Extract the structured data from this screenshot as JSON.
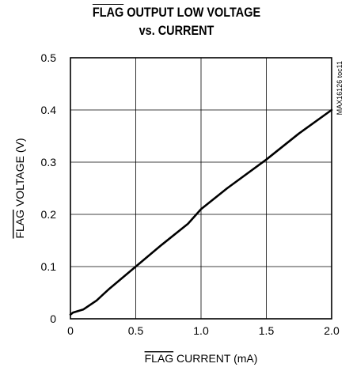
{
  "chart_data": {
    "type": "line",
    "title_line1_overlined": "FLAG",
    "title_line1_rest": " OUTPUT LOW VOLTAGE",
    "title_line2": "vs. CURRENT",
    "xlabel_overlined": "FLAG",
    "xlabel_rest": " CURRENT (mA)",
    "ylabel_overlined": "FLAG",
    "ylabel_rest": " VOLTAGE (V)",
    "xlim": [
      0,
      2.0
    ],
    "ylim": [
      0,
      0.5
    ],
    "x_ticks": [
      0,
      0.5,
      1.0,
      1.5,
      2.0
    ],
    "x_tick_labels": [
      "0",
      "0.5",
      "1.0",
      "1.5",
      "2.0"
    ],
    "y_ticks": [
      0,
      0.1,
      0.2,
      0.3,
      0.4,
      0.5
    ],
    "y_tick_labels": [
      "0",
      "0.1",
      "0.2",
      "0.3",
      "0.4",
      "0.5"
    ],
    "grid": true,
    "annotation": "MAX16126 toc11",
    "series": [
      {
        "x": [
          0,
          0.02,
          0.1,
          0.2,
          0.3,
          0.5,
          0.7,
          0.9,
          1.0,
          1.2,
          1.5,
          1.75,
          2.0
        ],
        "y": [
          0.008,
          0.012,
          0.018,
          0.035,
          0.058,
          0.1,
          0.142,
          0.182,
          0.21,
          0.25,
          0.305,
          0.355,
          0.4
        ]
      }
    ]
  }
}
